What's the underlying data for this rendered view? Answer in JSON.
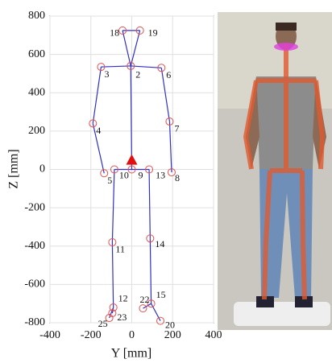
{
  "chart_data": {
    "type": "skeleton",
    "xlabel": "Y [mm]",
    "ylabel": "Z [mm]",
    "xlim": [
      -400,
      400
    ],
    "xticks": [
      -400,
      -200,
      0,
      200,
      400
    ],
    "ylim": [
      -800,
      800
    ],
    "yticks": [
      -800,
      -600,
      -400,
      -200,
      0,
      200,
      400,
      600,
      800
    ],
    "grid": true,
    "joint_color": "#e05050",
    "bone_color": "#3030c8",
    "marker_color": "#e01010",
    "labels": [
      "18",
      "19",
      "2",
      "3",
      "6",
      "4",
      "7",
      "5",
      "8",
      "10",
      "9",
      "13",
      "11",
      "14",
      "12",
      "15",
      "22",
      "23",
      "25",
      "20"
    ],
    "x": [
      -45,
      40,
      -5,
      -150,
      145,
      -190,
      185,
      -135,
      195,
      -85,
      0,
      85,
      -95,
      90,
      -90,
      95,
      55,
      -95,
      -110,
      140
    ],
    "y": [
      725,
      725,
      540,
      535,
      530,
      240,
      250,
      -20,
      -15,
      0,
      0,
      0,
      -380,
      -360,
      -720,
      -700,
      -725,
      -750,
      -775,
      -790
    ],
    "edges": [
      [
        0,
        1
      ],
      [
        0,
        2
      ],
      [
        1,
        2
      ],
      [
        2,
        3
      ],
      [
        2,
        4
      ],
      [
        3,
        5
      ],
      [
        5,
        7
      ],
      [
        4,
        6
      ],
      [
        6,
        8
      ],
      [
        2,
        10
      ],
      [
        9,
        11
      ],
      [
        9,
        12
      ],
      [
        12,
        14
      ],
      [
        11,
        13
      ],
      [
        13,
        15
      ],
      [
        14,
        17
      ],
      [
        14,
        18
      ],
      [
        15,
        16
      ],
      [
        15,
        19
      ]
    ],
    "marker": {
      "x": 0,
      "y": 50
    }
  }
}
